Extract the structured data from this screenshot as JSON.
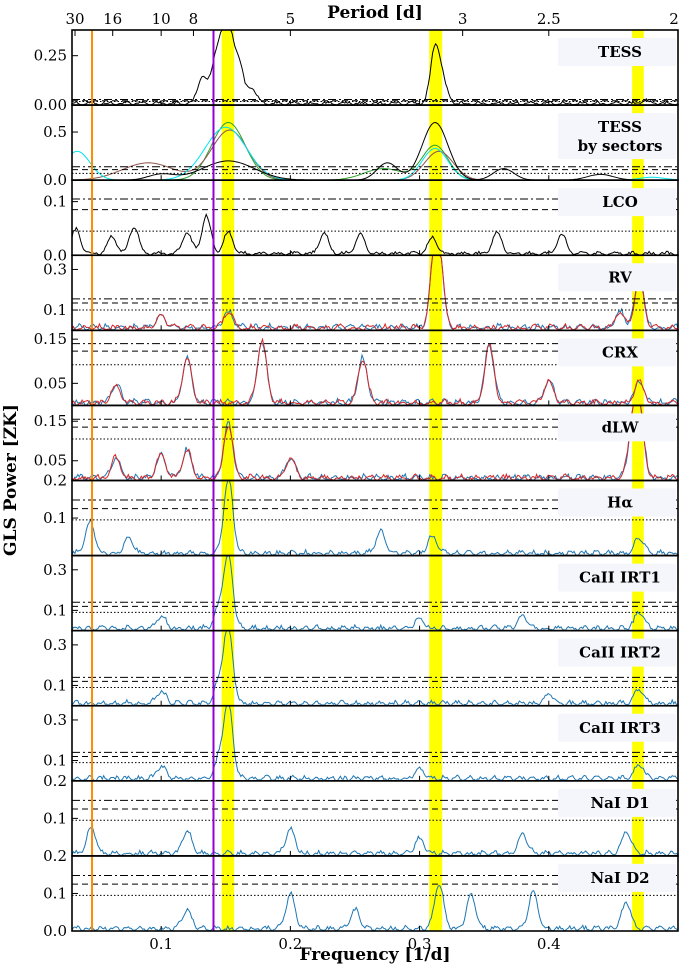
{
  "figure": {
    "top_axis_label": "Period [d]",
    "bottom_axis_label": "Frequency [1/d]",
    "y_axis_label": "GLS Power [ZK]"
  },
  "chart_data": {
    "type": "line",
    "xlim": [
      0.031,
      0.5
    ],
    "x_ticks": [
      0.1,
      0.2,
      0.3,
      0.4
    ],
    "x_tick_labels": [
      "0.1",
      "0.2",
      "0.3",
      "0.4"
    ],
    "period_ticks": [
      30,
      16,
      10,
      8,
      5,
      3,
      2.5,
      2
    ],
    "period_tick_labels": [
      "30",
      "16",
      "10",
      "8",
      "5",
      "3",
      "2.5",
      "2"
    ],
    "highlight_bands": [
      [
        0.1468,
        0.1565
      ],
      [
        0.3075,
        0.3175
      ],
      [
        0.4645,
        0.4735
      ]
    ],
    "highlight_color": "#ffff00",
    "vertical_lines": [
      {
        "x": 0.0465,
        "color": "#ff8c00"
      },
      {
        "x": 0.1405,
        "color": "#9400d3"
      }
    ],
    "series_colors": {
      "blue": "#1f77b4",
      "red": "#d62728",
      "black": "#000000",
      "cyan": "#00e5ee",
      "green": "#2ca02c",
      "brown": "#8c564b"
    },
    "panels": [
      {
        "label": "TESS",
        "ylim": [
          0,
          0.38
        ],
        "yticks": [
          0,
          0.25
        ],
        "ytick_labels": [
          "0.00",
          "0.25"
        ],
        "fap": [
          0.028,
          0.022,
          0.018
        ],
        "style": "black",
        "peaks": [
          [
            0.132,
            0.14
          ],
          [
            0.142,
            0.2
          ],
          [
            0.148,
            0.26
          ],
          [
            0.153,
            0.29
          ],
          [
            0.16,
            0.2
          ],
          [
            0.17,
            0.08
          ],
          [
            0.312,
            0.28
          ],
          [
            0.318,
            0.1
          ],
          [
            0.475,
            0.015
          ]
        ]
      },
      {
        "label": "TESS",
        "label2": "by sectors",
        "ylim": [
          0,
          0.78
        ],
        "yticks": [
          0,
          0.5
        ],
        "ytick_labels": [
          "0.0",
          "0.5"
        ],
        "fap": [
          0.14,
          0.11,
          0.07
        ],
        "style": "sectors",
        "peaks": [
          [
            0.152,
            0.56
          ],
          [
            0.312,
            0.6
          ],
          [
            0.272,
            0.18
          ],
          [
            0.36,
            0.12
          ],
          [
            0.1,
            0.08
          ],
          [
            0.44,
            0.06
          ]
        ]
      },
      {
        "label": "LCO",
        "ylim": [
          0,
          0.14
        ],
        "yticks": [
          0,
          0.1
        ],
        "ytick_labels": [
          "0.0",
          "0.1"
        ],
        "fap": [
          0.105,
          0.085,
          0.045
        ],
        "style": "black",
        "peaks": [
          [
            0.034,
            0.045
          ],
          [
            0.062,
            0.032
          ],
          [
            0.079,
            0.05
          ],
          [
            0.12,
            0.04
          ],
          [
            0.135,
            0.07
          ],
          [
            0.152,
            0.04
          ],
          [
            0.226,
            0.038
          ],
          [
            0.254,
            0.035
          ],
          [
            0.31,
            0.03
          ],
          [
            0.36,
            0.04
          ],
          [
            0.41,
            0.035
          ]
        ]
      },
      {
        "label": "RV",
        "ylim": [
          0,
          0.37
        ],
        "yticks": [
          0.1,
          0.3
        ],
        "ytick_labels": [
          "0.1",
          "0.3"
        ],
        "fap": [
          0.155,
          0.135,
          0.1
        ],
        "style": "bluered",
        "peaks": [
          [
            0.312,
            0.37
          ],
          [
            0.316,
            0.2
          ],
          [
            0.47,
            0.24
          ],
          [
            0.455,
            0.08
          ],
          [
            0.152,
            0.08
          ],
          [
            0.1,
            0.06
          ]
        ]
      },
      {
        "label": "CRX",
        "ylim": [
          0,
          0.17
        ],
        "yticks": [
          0.05,
          0.15
        ],
        "ytick_labels": [
          "0.05",
          "0.15"
        ],
        "fap": [
          0.14,
          0.123,
          0.092
        ],
        "style": "bluered",
        "peaks": [
          [
            0.12,
            0.1
          ],
          [
            0.178,
            0.14
          ],
          [
            0.256,
            0.1
          ],
          [
            0.354,
            0.13
          ],
          [
            0.47,
            0.05
          ],
          [
            0.065,
            0.04
          ],
          [
            0.4,
            0.05
          ]
        ]
      },
      {
        "label": "dLW",
        "ylim": [
          0,
          0.19
        ],
        "yticks": [
          0.05,
          0.15
        ],
        "ytick_labels": [
          "0.05",
          "0.15"
        ],
        "fap": [
          0.155,
          0.135,
          0.105
        ],
        "style": "bluered",
        "peaks": [
          [
            0.152,
            0.135
          ],
          [
            0.47,
            0.17
          ],
          [
            0.465,
            0.12
          ],
          [
            0.12,
            0.07
          ],
          [
            0.1,
            0.06
          ],
          [
            0.2,
            0.05
          ],
          [
            0.065,
            0.05
          ]
        ]
      },
      {
        "label": "Hα",
        "ylim": [
          0,
          0.2
        ],
        "yticks": [
          0.1,
          0.2
        ],
        "ytick_labels": [
          "0.1",
          "0.2"
        ],
        "fap": [
          0.148,
          0.125,
          0.095
        ],
        "style": "blue",
        "peaks": [
          [
            0.152,
            0.2
          ],
          [
            0.045,
            0.085
          ],
          [
            0.27,
            0.06
          ],
          [
            0.31,
            0.045
          ],
          [
            0.47,
            0.04
          ],
          [
            0.075,
            0.04
          ]
        ]
      },
      {
        "label": "CaII IRT1",
        "ylim": [
          0,
          0.37
        ],
        "yticks": [
          0.1,
          0.3
        ],
        "ytick_labels": [
          "0.1",
          "0.3"
        ],
        "fap": [
          0.14,
          0.12,
          0.09
        ],
        "style": "blue",
        "peaks": [
          [
            0.152,
            0.35
          ],
          [
            0.145,
            0.1
          ],
          [
            0.47,
            0.08
          ],
          [
            0.1,
            0.06
          ],
          [
            0.3,
            0.05
          ],
          [
            0.38,
            0.06
          ]
        ]
      },
      {
        "label": "CaII IRT2",
        "ylim": [
          0,
          0.37
        ],
        "yticks": [
          0.1,
          0.3
        ],
        "ytick_labels": [
          "0.1",
          "0.3"
        ],
        "fap": [
          0.14,
          0.12,
          0.09
        ],
        "style": "blue",
        "peaks": [
          [
            0.152,
            0.37
          ],
          [
            0.145,
            0.1
          ],
          [
            0.47,
            0.07
          ],
          [
            0.1,
            0.06
          ],
          [
            0.4,
            0.05
          ]
        ]
      },
      {
        "label": "CaII IRT3",
        "ylim": [
          0,
          0.37
        ],
        "yticks": [
          0.1,
          0.3
        ],
        "ytick_labels": [
          "0.1",
          "0.3"
        ],
        "fap": [
          0.14,
          0.12,
          0.09
        ],
        "style": "blue",
        "peaks": [
          [
            0.152,
            0.36
          ],
          [
            0.145,
            0.1
          ],
          [
            0.47,
            0.07
          ],
          [
            0.1,
            0.06
          ],
          [
            0.3,
            0.05
          ]
        ]
      },
      {
        "label": "NaI D1",
        "ylim": [
          0,
          0.2
        ],
        "yticks": [
          0.1,
          0.2
        ],
        "ytick_labels": [
          "0.1",
          "0.2"
        ],
        "fap": [
          0.148,
          0.125,
          0.095
        ],
        "style": "blue",
        "peaks": [
          [
            0.046,
            0.07
          ],
          [
            0.12,
            0.06
          ],
          [
            0.2,
            0.065
          ],
          [
            0.46,
            0.06
          ],
          [
            0.3,
            0.04
          ],
          [
            0.38,
            0.05
          ]
        ]
      },
      {
        "label": "NaI D2",
        "ylim": [
          0,
          0.2
        ],
        "yticks": [
          0.0,
          0.1,
          0.2
        ],
        "ytick_labels": [
          "0.0",
          "0.1",
          "0.2"
        ],
        "fap": [
          0.148,
          0.125,
          0.095
        ],
        "style": "blue",
        "peaks": [
          [
            0.315,
            0.12
          ],
          [
            0.388,
            0.1
          ],
          [
            0.34,
            0.09
          ],
          [
            0.2,
            0.09
          ],
          [
            0.46,
            0.07
          ],
          [
            0.12,
            0.05
          ],
          [
            0.25,
            0.05
          ]
        ]
      }
    ]
  }
}
